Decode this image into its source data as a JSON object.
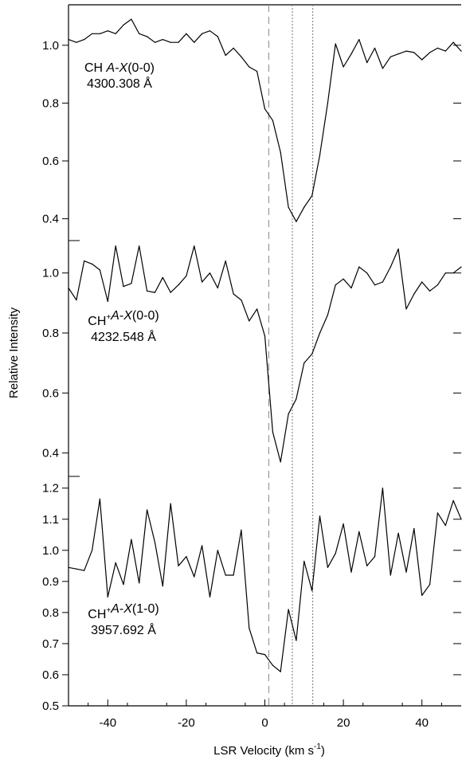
{
  "chart_data": {
    "type": "line",
    "xlabel": "LSR Velocity (km s",
    "xlabel_sup": "-1",
    "xlabel_end": ")",
    "ylabel": "Relative Intensity",
    "xlim": [
      -50,
      50
    ],
    "xticks": [
      -40,
      -20,
      0,
      20,
      40
    ],
    "xtick_labels": [
      "-40",
      "-20",
      "0",
      "20",
      "40"
    ],
    "vlines": [
      {
        "x": 1.0,
        "style": "dashed"
      },
      {
        "x": 7.0,
        "style": "dotted"
      },
      {
        "x": 12.2,
        "style": "dotted"
      }
    ],
    "panels": [
      {
        "label_line1": "CH ",
        "label_species": "",
        "label_trans_A": "A",
        "label_trans_dash": "-",
        "label_trans_X": "X",
        "label_trans_band": "(0-0)",
        "label_line2": "4300.308 Å",
        "ylim": [
          0.33,
          1.14
        ],
        "yticks": [
          0.4,
          0.6,
          0.8,
          1.0
        ],
        "ytick_labels": [
          "0.4",
          "0.6",
          "0.8",
          "1.0"
        ],
        "x": [
          -50,
          -48,
          -46,
          -44,
          -42,
          -40,
          -38,
          -36,
          -34,
          -32,
          -30,
          -28,
          -26,
          -24,
          -22,
          -20,
          -18,
          -16,
          -14,
          -12,
          -10,
          -8,
          -6,
          -4,
          -2,
          0,
          2,
          4,
          6,
          8,
          10,
          12,
          14,
          16,
          18,
          20,
          22,
          24,
          26,
          28,
          30,
          32,
          34,
          36,
          38,
          40,
          42,
          44,
          46,
          48,
          50
        ],
        "values": [
          1.02,
          1.01,
          1.02,
          1.04,
          1.04,
          1.05,
          1.04,
          1.07,
          1.09,
          1.04,
          1.03,
          1.01,
          1.02,
          1.01,
          1.01,
          1.04,
          1.01,
          1.04,
          1.05,
          1.03,
          0.965,
          0.99,
          0.96,
          0.925,
          0.91,
          0.78,
          0.74,
          0.63,
          0.44,
          0.39,
          0.44,
          0.48,
          0.62,
          0.8,
          1.005,
          0.925,
          0.97,
          1.02,
          0.94,
          0.99,
          0.92,
          0.96,
          0.97,
          0.98,
          0.975,
          0.95,
          0.975,
          0.99,
          0.98,
          1.01,
          0.98
        ]
      },
      {
        "label_line1": "CH",
        "label_species": "+",
        "label_trans_A": "A",
        "label_trans_dash": "-",
        "label_trans_X": "X",
        "label_trans_band": "(0-0)",
        "label_line2": "4232.548 Å",
        "ylim": [
          0.33,
          1.1
        ],
        "yticks": [
          0.4,
          0.6,
          0.8,
          1.0
        ],
        "ytick_labels": [
          "0.4",
          "0.6",
          "0.8",
          "1.0"
        ],
        "x": [
          -50,
          -48,
          -46,
          -44,
          -42,
          -40,
          -38,
          -36,
          -34,
          -32,
          -30,
          -28,
          -26,
          -24,
          -22,
          -20,
          -18,
          -16,
          -14,
          -12,
          -10,
          -8,
          -6,
          -4,
          -2,
          0,
          2,
          4,
          6,
          8,
          10,
          12,
          14,
          16,
          18,
          20,
          22,
          24,
          26,
          28,
          30,
          32,
          34,
          36,
          38,
          40,
          42,
          44,
          46,
          48,
          50
        ],
        "values": [
          0.95,
          0.91,
          1.04,
          1.03,
          1.01,
          0.905,
          1.09,
          0.955,
          0.965,
          1.09,
          0.94,
          0.935,
          0.985,
          0.935,
          0.96,
          0.99,
          1.09,
          0.97,
          1.0,
          0.95,
          1.04,
          0.93,
          0.91,
          0.84,
          0.88,
          0.79,
          0.47,
          0.37,
          0.53,
          0.58,
          0.7,
          0.73,
          0.8,
          0.86,
          0.96,
          0.98,
          0.95,
          1.02,
          1.0,
          0.96,
          0.97,
          1.02,
          1.08,
          0.88,
          0.93,
          0.97,
          0.94,
          0.96,
          1.0,
          1.0,
          1.02
        ]
      },
      {
        "label_line1": "CH",
        "label_species": "+",
        "label_trans_A": "A",
        "label_trans_dash": "-",
        "label_trans_X": "X",
        "label_trans_band": "(1-0)",
        "label_line2": "3957.692 Å",
        "ylim": [
          0.5,
          1.23
        ],
        "yticks": [
          0.5,
          0.6,
          0.7,
          0.8,
          0.9,
          1.0,
          1.1,
          1.2
        ],
        "ytick_labels": [
          "0.5",
          "0.6",
          "0.7",
          "0.8",
          "0.9",
          "1.0",
          "1.1",
          "1.2"
        ],
        "x": [
          -50,
          -48,
          -46,
          -44,
          -42,
          -40,
          -38,
          -36,
          -34,
          -32,
          -30,
          -28,
          -26,
          -24,
          -22,
          -20,
          -18,
          -16,
          -14,
          -12,
          -10,
          -8,
          -6,
          -4,
          -2,
          0,
          2,
          4,
          6,
          8,
          10,
          12,
          14,
          16,
          18,
          20,
          22,
          24,
          26,
          28,
          30,
          32,
          34,
          36,
          38,
          40,
          42,
          44,
          46,
          48,
          50
        ],
        "values": [
          0.945,
          0.94,
          0.935,
          1.0,
          1.165,
          0.85,
          0.96,
          0.89,
          1.035,
          0.895,
          1.13,
          1.025,
          0.885,
          1.15,
          0.95,
          0.98,
          0.915,
          1.015,
          0.85,
          1.0,
          0.92,
          0.92,
          1.065,
          0.75,
          0.67,
          0.665,
          0.63,
          0.61,
          0.81,
          0.71,
          0.965,
          0.87,
          1.11,
          0.945,
          0.99,
          1.085,
          0.93,
          1.06,
          0.95,
          0.98,
          1.2,
          0.92,
          1.055,
          0.93,
          1.07,
          0.855,
          0.89,
          1.12,
          1.08,
          1.16,
          1.1
        ]
      }
    ]
  }
}
